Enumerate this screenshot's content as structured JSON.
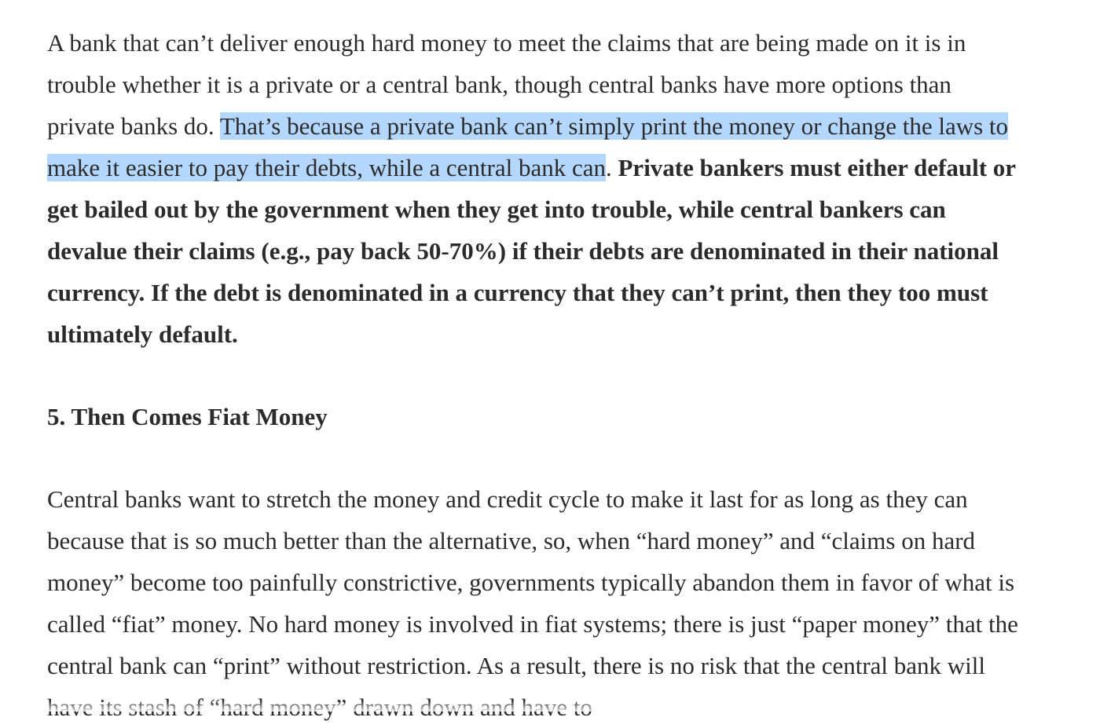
{
  "article": {
    "para1": {
      "plain_start": "A bank that can’t deliver enough hard money to meet the claims that are being made on it is in trouble whether it is a private or a central bank, though central banks have more options than private banks do. ",
      "selected_text": "That’s because a private bank can’t simply print the money or change the laws to make it easier to pay their debts, while a central bank can",
      "after_selection": ".  ",
      "bold_text": "Private bankers must either default or get bailed out by the government when they get into trouble, while central bankers can devalue their claims (e.g., pay back 50-70%) if their debts are denominated in their national currency.  If the debt is denominated in a currency that they can’t print, then they too must ultimately default."
    },
    "heading": "5. Then Comes Fiat Money",
    "para2": "Central banks want to stretch the money and credit cycle to make it last for as long as they can because that is so much better than the alternative, so, when “hard money” and “claims on hard money” become too painfully constrictive, governments typically abandon them in favor of what is called “fiat” money. No hard money is involved in fiat systems; there is just “paper money” that the central bank can “print” without restriction. As a result, there is no risk that the central bank will have its stash of “hard money” drawn down and have to"
  },
  "colors": {
    "selection": "#b3d7fe",
    "text": "#2b2b2b",
    "background": "#ffffff"
  }
}
